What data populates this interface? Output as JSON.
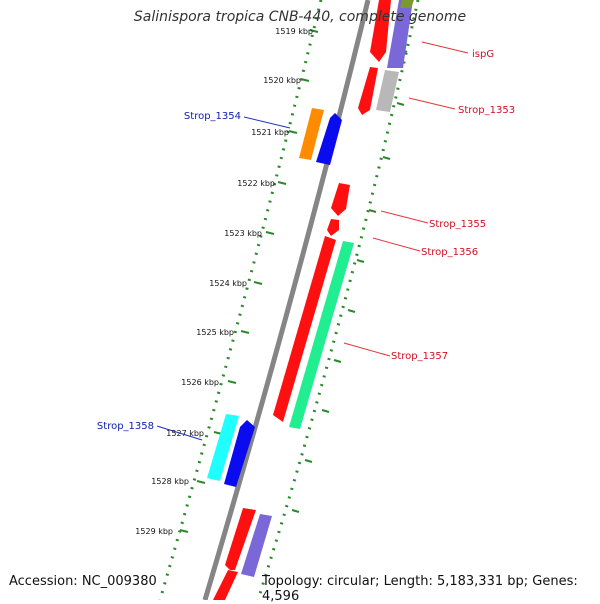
{
  "title": "Salinispora tropica CNB-440, complete genome",
  "footer": {
    "accession": "Accession: NC_009380",
    "topology": "Topology: circular; Length: 5,183,331 bp; Genes: 4,596"
  },
  "scale": {
    "unit": "kbp",
    "visible_ticks": [
      "1519 kbp",
      "1520 kbp",
      "1521 kbp",
      "1522 kbp",
      "1523 kbp",
      "1524 kbp",
      "1525 kbp",
      "1526 kbp",
      "1527 kbp",
      "1528 kbp",
      "1529 kbp"
    ]
  },
  "genes": {
    "reverse_strand": [
      {
        "label": "ispG",
        "color": "#e8343a"
      },
      {
        "label": "Strop_1353",
        "color": "#e8343a"
      },
      {
        "label": "Strop_1355",
        "color": "#e8343a"
      },
      {
        "label": "Strop_1356",
        "color": "#e8343a"
      },
      {
        "label": "Strop_1357",
        "color": "#e8343a"
      }
    ],
    "forward_strand": [
      {
        "label": "Strop_1354",
        "color": "#1f2fbf"
      },
      {
        "label": "Strop_1358",
        "color": "#1f2fbf"
      }
    ]
  },
  "colors": {
    "backbone": "#808080",
    "tick_dots": "#1f8a1f",
    "gene_red": "#ff1010",
    "gene_blue": "#0b0bf0",
    "gene_orange": "#ff8c00",
    "gene_cyan": "#20ffff",
    "gene_green": "#20ee90",
    "gene_slate": "#7a68d8",
    "gene_grey": "#b8b8b8",
    "gene_olive": "#7a9a30"
  }
}
